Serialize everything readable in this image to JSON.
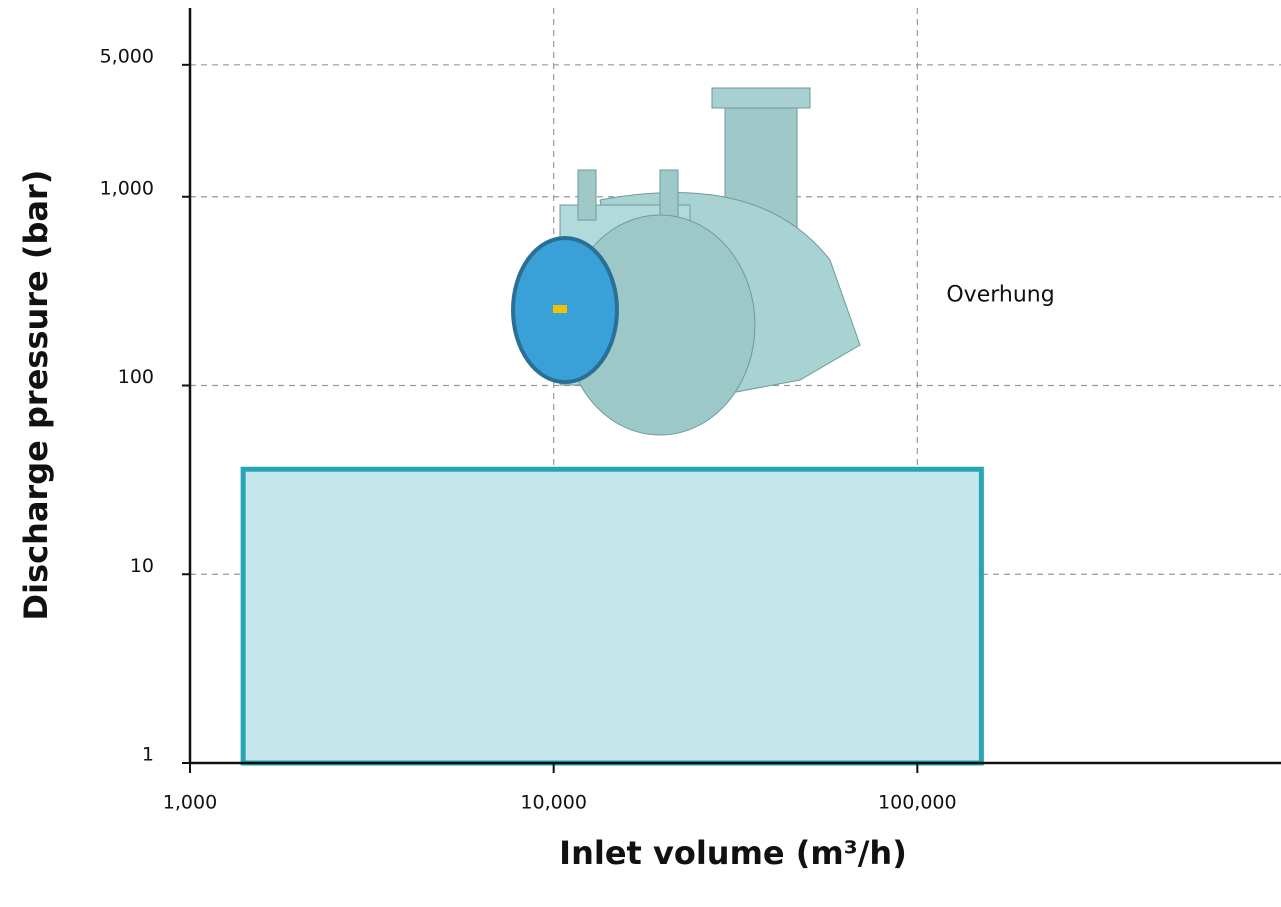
{
  "chart_data": {
    "type": "region",
    "x_label": "Inlet volume (m³/h)",
    "y_label": "Discharge pressure (bar)",
    "x_scale": "log",
    "y_scale": "log",
    "xlim": [
      1000,
      1000000
    ],
    "ylim": [
      1,
      10000
    ],
    "xticks": [
      {
        "value": 1000,
        "label": "1,000"
      },
      {
        "value": 10000,
        "label": "10,000"
      },
      {
        "value": 100000,
        "label": "100,000"
      }
    ],
    "yticks": [
      1,
      10,
      100,
      {
        "value": 1000,
        "label": "1,000"
      },
      {
        "value": 5000,
        "label": "5,000"
      }
    ],
    "grid": true,
    "regions": [
      {
        "name": "Overhung",
        "x": [
          1400,
          150000
        ],
        "y": [
          1,
          36
        ],
        "color": "#26a6b5",
        "fill": "#c5e7ec"
      }
    ]
  }
}
